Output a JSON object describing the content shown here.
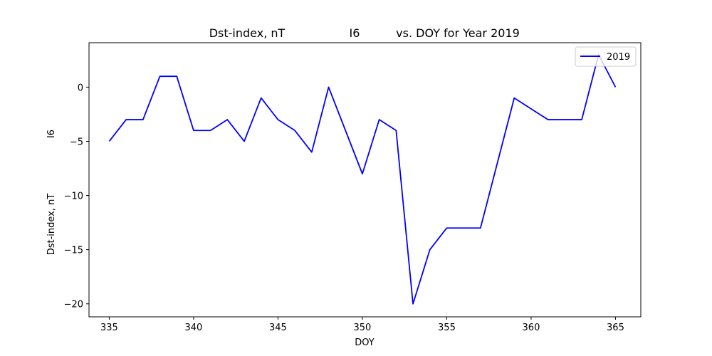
{
  "chart_data": {
    "type": "line",
    "title_parts": [
      "Dst-index, nT",
      "I6",
      "vs. DOY for Year 2019"
    ],
    "xlabel": "DOY",
    "ylabel_outer": "Dst-index, nT",
    "ylabel_inner": "I6",
    "xlim": [
      333.8,
      366.5
    ],
    "ylim": [
      -21.2,
      4.1
    ],
    "xticks": [
      335,
      340,
      345,
      350,
      355,
      360,
      365
    ],
    "yticks": [
      0,
      -5,
      -10,
      -15,
      -20
    ],
    "xtick_labels": [
      "335",
      "340",
      "345",
      "350",
      "355",
      "360",
      "365"
    ],
    "ytick_labels": [
      "0",
      "−5",
      "−10",
      "−15",
      "−20"
    ],
    "legend_position": "top-right",
    "grid": false,
    "series": [
      {
        "name": "2019",
        "color": "#0000ff",
        "x": [
          335,
          336,
          337,
          338,
          339,
          340,
          341,
          342,
          343,
          344,
          345,
          346,
          347,
          348,
          349,
          350,
          351,
          352,
          353,
          354,
          355,
          356,
          357,
          358,
          359,
          360,
          361,
          362,
          363,
          364,
          365
        ],
        "y": [
          -5,
          -3,
          -3,
          1,
          1,
          -4,
          -4,
          -3,
          -5,
          -1,
          -3,
          -4,
          -6,
          0,
          -4,
          -8,
          -3,
          -4,
          -20,
          -15,
          -13,
          -13,
          -13,
          -7,
          -1,
          -2,
          -3,
          -3,
          -3,
          3,
          0
        ]
      }
    ]
  }
}
